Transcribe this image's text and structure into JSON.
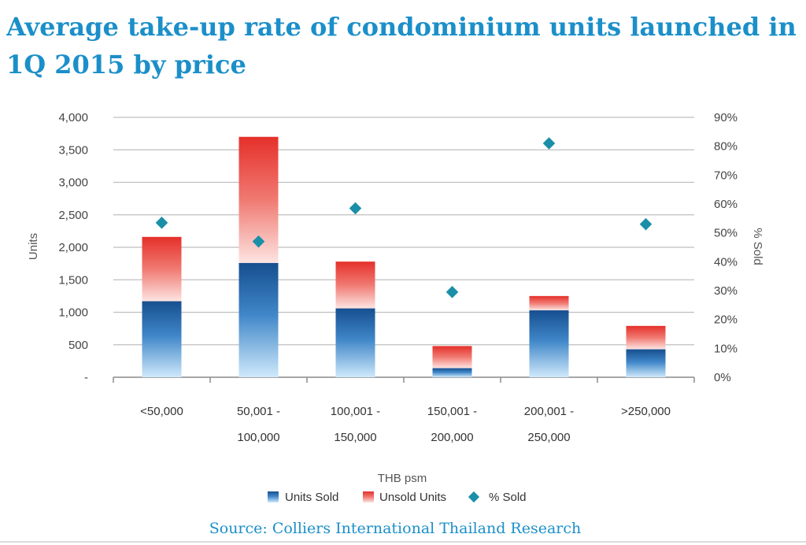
{
  "chart_data": {
    "type": "bar",
    "stacked": true,
    "title": "Average take-up rate of condominium units launched in 1Q 2015 by price",
    "xlabel": "THB psm",
    "ylabel": "Units",
    "y2label": "% Sold",
    "ylim": [
      0,
      4000
    ],
    "y2lim": [
      0,
      90
    ],
    "y_ticks": [
      "-",
      "500",
      "1,000",
      "1,500",
      "2,000",
      "2,500",
      "3,000",
      "3,500",
      "4,000"
    ],
    "y2_ticks": [
      "0%",
      "10%",
      "20%",
      "30%",
      "40%",
      "50%",
      "60%",
      "70%",
      "80%",
      "90%"
    ],
    "categories": [
      [
        "<50,000"
      ],
      [
        "50,001 -",
        "100,000"
      ],
      [
        "100,001 -",
        "150,000"
      ],
      [
        "150,001 -",
        "200,000"
      ],
      [
        "200,001 -",
        "250,000"
      ],
      [
        ">250,000"
      ]
    ],
    "series": [
      {
        "name": "Units Sold",
        "type": "bar",
        "axis": "left",
        "color": "#1c5a9a",
        "values": [
          1170,
          1760,
          1060,
          140,
          1030,
          430
        ]
      },
      {
        "name": "Unsold Units",
        "type": "bar",
        "axis": "left",
        "color": "#e83a30",
        "values": [
          990,
          1940,
          720,
          340,
          220,
          360
        ]
      },
      {
        "name": "% Sold",
        "type": "scatter",
        "axis": "right",
        "color": "#1b8fa8",
        "values": [
          53.5,
          47,
          58.5,
          29.5,
          81,
          53
        ]
      }
    ],
    "legend": [
      "Units Sold",
      "Unsold Units",
      "% Sold"
    ],
    "legend_position": "bottom",
    "grid": true
  },
  "source": "Source: Colliers International Thailand Research"
}
